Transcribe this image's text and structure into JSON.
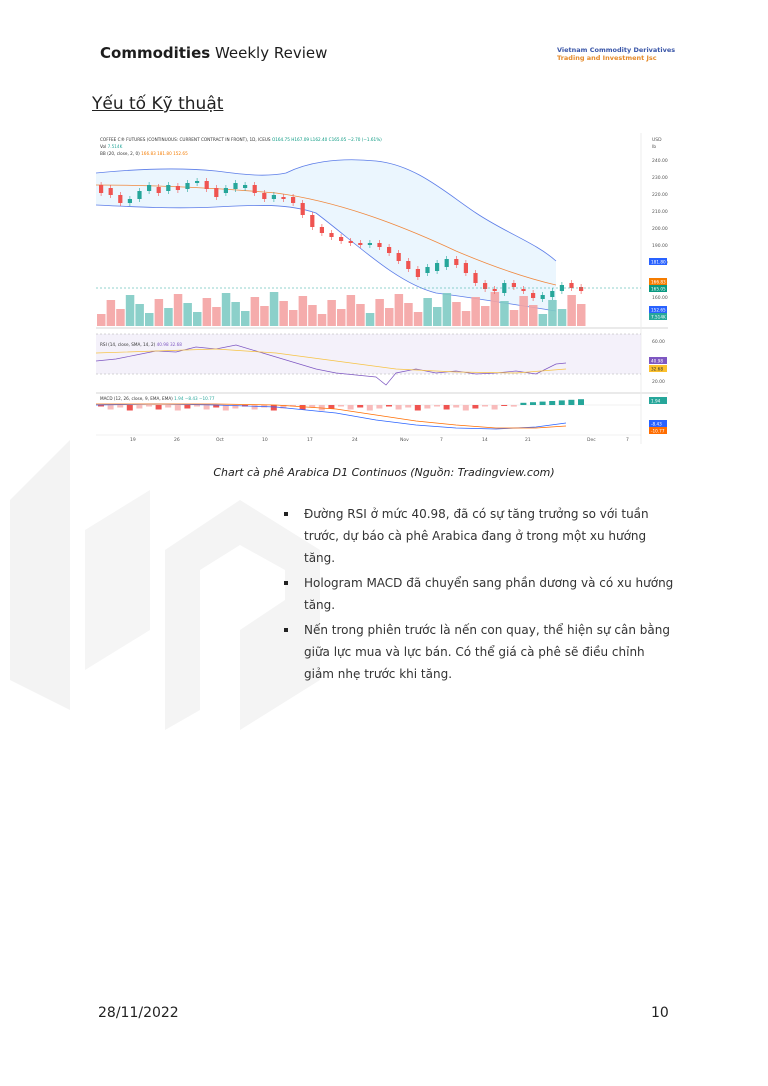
{
  "header": {
    "title_bold": "Commodities",
    "title_rest": " Weekly Review",
    "company_line1": "Vietnam Commodity Derivatives",
    "company_line2": "Trading and Investment Jsc"
  },
  "section_title": "Yếu tố Kỹ thuật",
  "chart": {
    "legend_main": "COFFEE C® FUTURES (CONTINUOUS: CURRENT CONTRACT IN FRONT), 1D, ICEUS",
    "ohlc": "O164.75 H167.09 L162.40 C165.05 −2.70 (−1.61%)",
    "vol_label": "Vol",
    "vol_value": "7.514K",
    "bb_label": "BB (20, close, 2, 0)",
    "bb_values": "166.83 181.80 152.65",
    "rsi_label": "RSI (14, close, SMA, 14, 2)",
    "rsi_values": "40.98 32.68",
    "macd_label": "MACD (12, 26, close, 9, EMA, EMA)",
    "macd_values": "1.94 −8.43 −10.77",
    "currency": "USD",
    "unit": "lb",
    "price_ticks": [
      "240.00",
      "230.00",
      "220.00",
      "210.00",
      "200.00",
      "190.00",
      "180.00",
      "160.00"
    ],
    "rsi_ticks": [
      "60.00",
      "20.00"
    ],
    "price_tags": [
      {
        "text": "181.80",
        "color": "#2962ff"
      },
      {
        "text": "166.83",
        "color": "#f57c00"
      },
      {
        "text": "165.05",
        "color": "#089981"
      },
      {
        "text": "152.65",
        "color": "#2962ff"
      },
      {
        "text": "7.514K",
        "color": "#26a69a"
      }
    ],
    "rsi_tags": [
      {
        "text": "40.98",
        "color": "#7e57c2"
      },
      {
        "text": "32.68",
        "color": "#fbc02d"
      }
    ],
    "macd_tags": [
      {
        "text": "1.94",
        "color": "#26a69a"
      },
      {
        "text": "-8.43",
        "color": "#2962ff"
      },
      {
        "text": "-10.77",
        "color": "#ff6d00"
      }
    ],
    "x_ticks": [
      "19",
      "26",
      "Oct",
      "10",
      "17",
      "24",
      "Nov",
      "7",
      "14",
      "21",
      "Dec",
      "7"
    ]
  },
  "caption": "Chart cà phê Arabica D1 Continuos (Nguồn: Tradingview.com)",
  "bullets": [
    "Đường RSI ở mức 40.98, đã có sự tăng trưởng so với tuần trước, dự báo cà phê Arabica đang ở trong một xu hướng tăng.",
    "Hologram MACD đã chuyển sang phần dương và có xu hướng tăng.",
    "Nến trong phiên trước là nến con quay, thể hiện sự cân bằng giữa lực mua và lực bán. Có thể giá cà phê sẽ điều chỉnh giảm nhẹ trước khi tăng."
  ],
  "footer": {
    "date": "28/11/2022",
    "page": "10"
  }
}
